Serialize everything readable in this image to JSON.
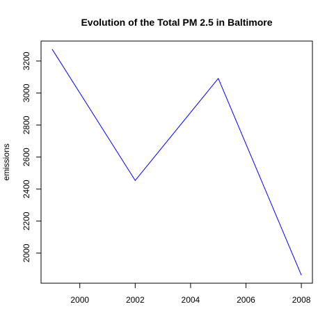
{
  "chart_data": {
    "type": "line",
    "title": "Evolution of the Total PM 2.5 in Baltimore",
    "xlabel": "",
    "ylabel": "emissions",
    "x": [
      1999,
      2002,
      2005,
      2008
    ],
    "series": [
      {
        "values": [
          3274.2,
          2453.9,
          3091.4,
          1862.3
        ]
      }
    ],
    "xlim": [
      1998.6,
      2008.4
    ],
    "ylim": [
      1812,
      3325
    ],
    "xticks": [
      "2000",
      "2002",
      "2004",
      "2006",
      "2008"
    ],
    "yticks": [
      "2000",
      "2200",
      "2400",
      "2600",
      "2800",
      "3000",
      "3200"
    ],
    "line_color": "#0000ff",
    "grid": false,
    "legend": "none"
  }
}
